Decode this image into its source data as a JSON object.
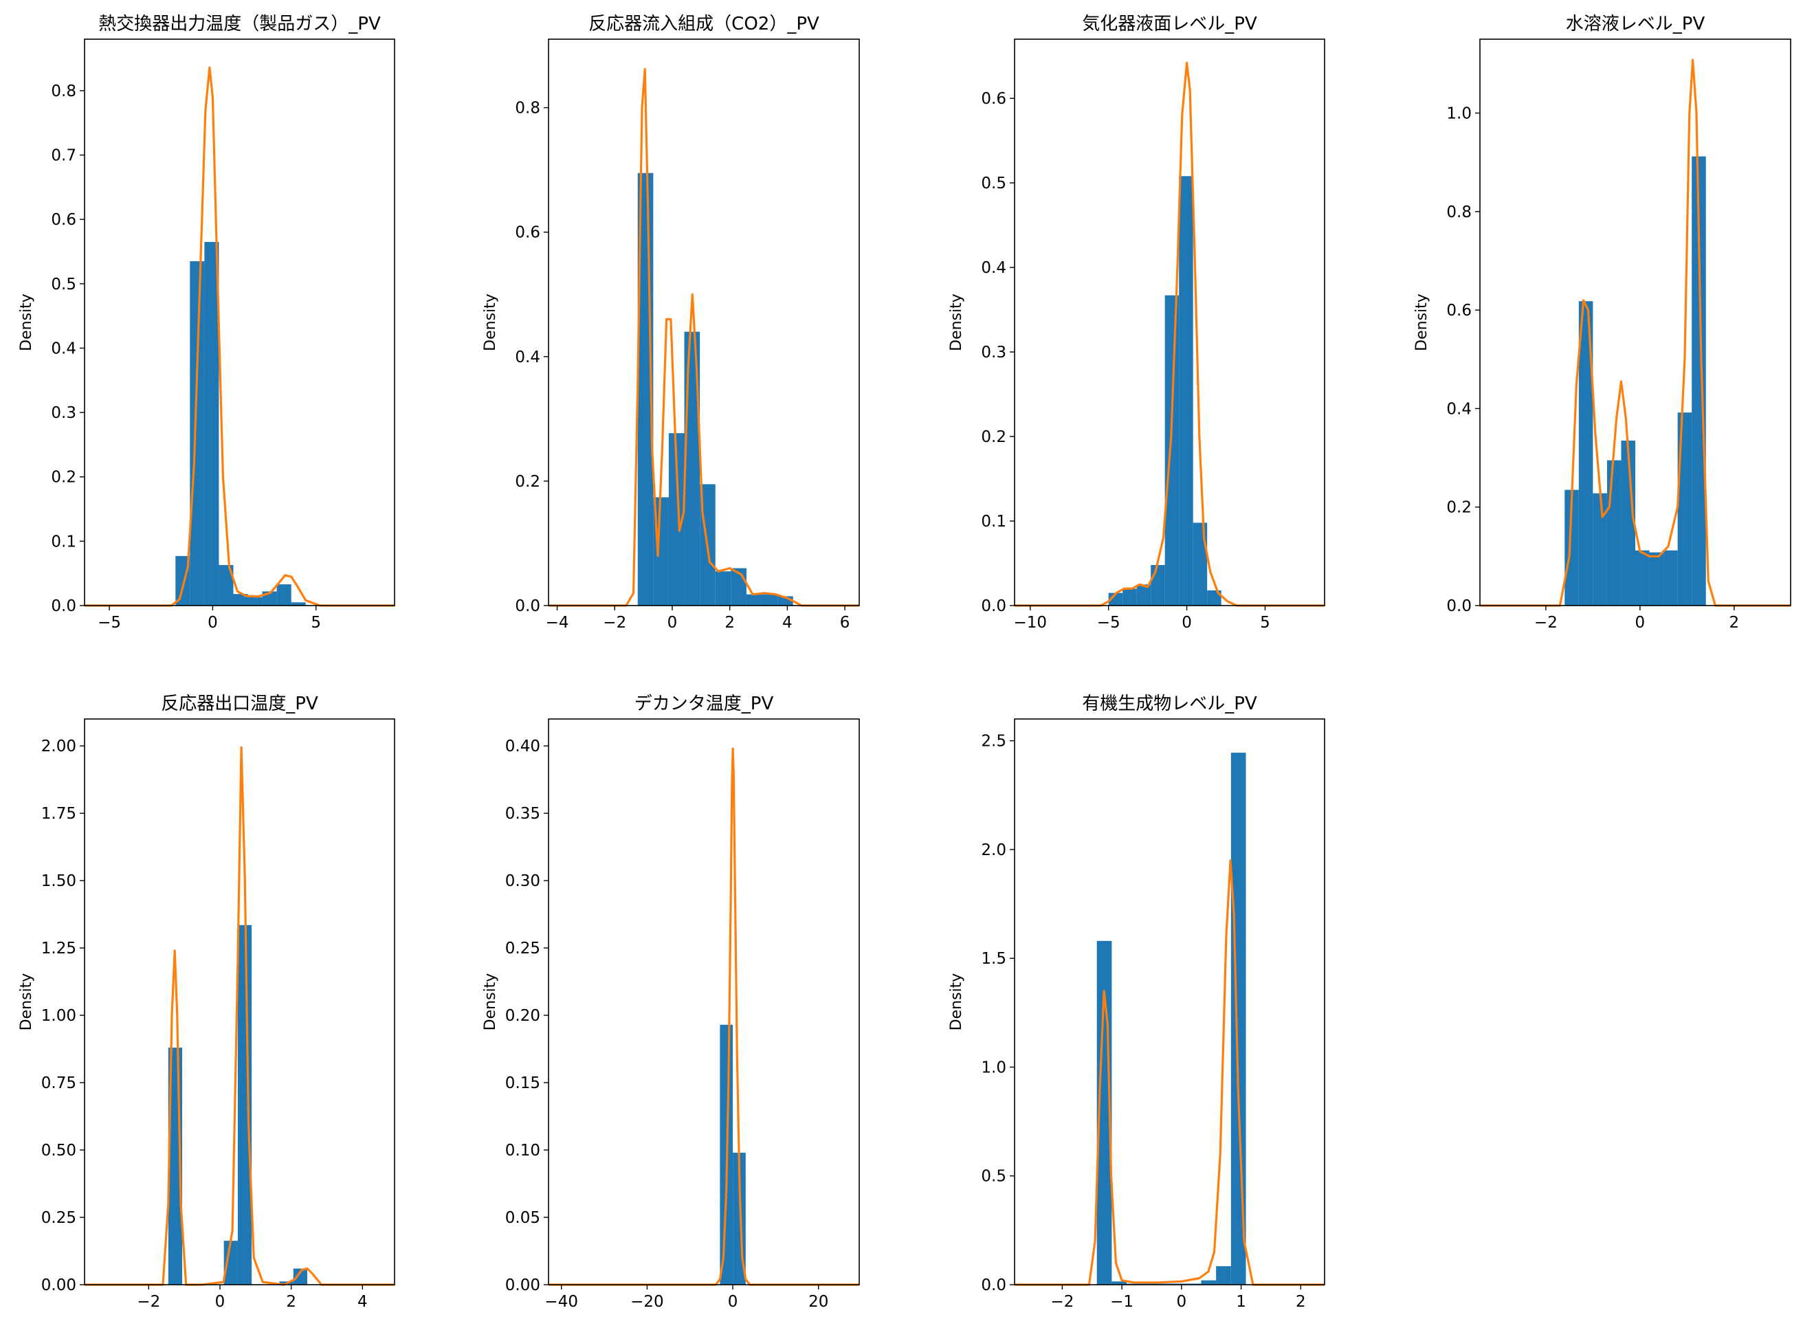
{
  "chart_data": [
    {
      "type": "histogram+kde",
      "title": "熱交換器出力温度（製品ガス）_PV",
      "ylabel": "Density",
      "xlim": [
        -6.2,
        8.8
      ],
      "ylim": [
        0,
        0.88
      ],
      "xticks": [
        -5,
        0,
        5
      ],
      "yticks": [
        0.0,
        0.1,
        0.2,
        0.3,
        0.4,
        0.5,
        0.6,
        0.7,
        0.8
      ],
      "ytick_decimals": 1,
      "histogram": {
        "bin_edges": [
          -1.8,
          -1.1,
          -0.4,
          0.3,
          1.0,
          1.7,
          2.4,
          3.1,
          3.8,
          4.5
        ],
        "density": [
          0.077,
          0.535,
          0.565,
          0.063,
          0.018,
          0.013,
          0.022,
          0.033,
          0.005
        ]
      },
      "kde": {
        "x": [
          -6.2,
          -2.0,
          -1.6,
          -1.2,
          -0.9,
          -0.6,
          -0.35,
          -0.15,
          0.0,
          0.2,
          0.5,
          0.8,
          1.2,
          1.6,
          2.2,
          2.8,
          3.2,
          3.5,
          3.8,
          4.1,
          4.5,
          5.2,
          8.8
        ],
        "y": [
          0,
          0,
          0.01,
          0.06,
          0.22,
          0.52,
          0.77,
          0.836,
          0.79,
          0.55,
          0.2,
          0.06,
          0.022,
          0.015,
          0.014,
          0.02,
          0.035,
          0.047,
          0.045,
          0.03,
          0.008,
          0,
          0
        ]
      }
    },
    {
      "type": "histogram+kde",
      "title": "反応器流入組成（CO2）_PV",
      "ylabel": "Density",
      "xlim": [
        -4.3,
        6.5
      ],
      "ylim": [
        0,
        0.91
      ],
      "xticks": [
        -4,
        -2,
        0,
        2,
        4,
        6
      ],
      "yticks": [
        0.0,
        0.2,
        0.4,
        0.6,
        0.8
      ],
      "ytick_decimals": 1,
      "histogram": {
        "bin_edges": [
          -1.2,
          -0.66,
          -0.12,
          0.42,
          0.96,
          1.5,
          2.04,
          2.58,
          3.12,
          3.66,
          4.2
        ],
        "density": [
          0.695,
          0.174,
          0.277,
          0.44,
          0.195,
          0.055,
          0.06,
          0.018,
          0.018,
          0.015
        ]
      },
      "kde": {
        "x": [
          -4.3,
          -1.6,
          -1.35,
          -1.2,
          -1.05,
          -0.95,
          -0.85,
          -0.7,
          -0.5,
          -0.35,
          -0.2,
          -0.05,
          0.1,
          0.25,
          0.4,
          0.55,
          0.7,
          0.85,
          1.05,
          1.3,
          1.6,
          2.0,
          2.4,
          2.8,
          3.2,
          3.6,
          4.0,
          4.5,
          6.5
        ],
        "y": [
          0,
          0,
          0.02,
          0.35,
          0.8,
          0.862,
          0.65,
          0.25,
          0.08,
          0.25,
          0.46,
          0.46,
          0.28,
          0.12,
          0.15,
          0.38,
          0.5,
          0.38,
          0.15,
          0.07,
          0.055,
          0.06,
          0.05,
          0.018,
          0.02,
          0.018,
          0.012,
          0,
          0
        ]
      }
    },
    {
      "type": "histogram+kde",
      "title": "気化器液面レベル_PV",
      "ylabel": "Density",
      "xlim": [
        -11,
        8.8
      ],
      "ylim": [
        0,
        0.67
      ],
      "xticks": [
        -10,
        -5,
        0,
        5
      ],
      "yticks": [
        0.0,
        0.1,
        0.2,
        0.3,
        0.4,
        0.5,
        0.6
      ],
      "ytick_decimals": 1,
      "histogram": {
        "bin_edges": [
          -5.0,
          -4.1,
          -3.2,
          -2.3,
          -1.4,
          -0.5,
          0.4,
          1.3,
          2.2,
          3.1
        ],
        "density": [
          0.015,
          0.02,
          0.025,
          0.048,
          0.367,
          0.508,
          0.098,
          0.018,
          0.0
        ]
      },
      "kde": {
        "x": [
          -11,
          -5.5,
          -5.0,
          -4.5,
          -4.0,
          -3.5,
          -3.0,
          -2.5,
          -2.0,
          -1.5,
          -1.0,
          -0.6,
          -0.3,
          0.0,
          0.2,
          0.5,
          0.8,
          1.1,
          1.5,
          2.0,
          2.6,
          3.2,
          8.8
        ],
        "y": [
          0,
          0,
          0.005,
          0.015,
          0.02,
          0.02,
          0.025,
          0.022,
          0.04,
          0.08,
          0.2,
          0.4,
          0.58,
          0.642,
          0.61,
          0.42,
          0.2,
          0.08,
          0.04,
          0.015,
          0.005,
          0,
          0
        ]
      }
    },
    {
      "type": "histogram+kde",
      "title": "水溶液レベル_PV",
      "ylabel": "Density",
      "xlim": [
        -3.4,
        3.2
      ],
      "ylim": [
        0,
        1.15
      ],
      "xticks": [
        -2,
        0,
        2
      ],
      "yticks": [
        0.0,
        0.2,
        0.4,
        0.6,
        0.8,
        1.0
      ],
      "ytick_decimals": 1,
      "histogram": {
        "bin_edges": [
          -1.6,
          -1.3,
          -1.0,
          -0.7,
          -0.4,
          -0.1,
          0.2,
          0.5,
          0.8,
          1.1,
          1.4
        ],
        "density": [
          0.235,
          0.618,
          0.228,
          0.295,
          0.335,
          0.112,
          0.108,
          0.112,
          0.392,
          0.912
        ]
      },
      "kde": {
        "x": [
          -3.4,
          -1.7,
          -1.5,
          -1.35,
          -1.2,
          -1.1,
          -0.95,
          -0.8,
          -0.65,
          -0.5,
          -0.4,
          -0.3,
          -0.15,
          0.0,
          0.2,
          0.4,
          0.6,
          0.8,
          0.95,
          1.05,
          1.12,
          1.2,
          1.3,
          1.45,
          1.6,
          3.2
        ],
        "y": [
          0,
          0,
          0.1,
          0.45,
          0.62,
          0.6,
          0.35,
          0.18,
          0.2,
          0.38,
          0.455,
          0.38,
          0.18,
          0.11,
          0.1,
          0.1,
          0.12,
          0.2,
          0.5,
          1.0,
          1.108,
          1.0,
          0.5,
          0.05,
          0,
          0
        ]
      }
    },
    {
      "type": "histogram+kde",
      "title": "反応器出口温度_PV",
      "ylabel": "Density",
      "xlim": [
        -3.8,
        4.9
      ],
      "ylim": [
        0,
        2.1
      ],
      "xticks": [
        -2,
        0,
        2,
        4
      ],
      "yticks": [
        0.0,
        0.25,
        0.5,
        0.75,
        1.0,
        1.25,
        1.5,
        1.75,
        2.0
      ],
      "ytick_decimals": 2,
      "histogram": {
        "bin_edges": [
          -1.45,
          -1.06,
          -0.67,
          -0.28,
          0.11,
          0.5,
          0.89,
          1.28,
          1.67,
          2.06,
          2.45,
          2.84
        ],
        "density": [
          0.88,
          0.0,
          0.0,
          0.0,
          0.163,
          1.335,
          0.0,
          0.0,
          0.012,
          0.06,
          0.0
        ]
      },
      "kde": {
        "x": [
          -3.8,
          -1.6,
          -1.45,
          -1.35,
          -1.27,
          -1.2,
          -1.1,
          -0.95,
          -0.5,
          0.1,
          0.35,
          0.5,
          0.6,
          0.7,
          0.8,
          0.95,
          1.2,
          1.8,
          2.1,
          2.3,
          2.45,
          2.6,
          2.85,
          4.9
        ],
        "y": [
          0,
          0,
          0.3,
          1.0,
          1.24,
          1.0,
          0.3,
          0,
          0,
          0.01,
          0.2,
          1.2,
          1.995,
          1.5,
          0.6,
          0.1,
          0.01,
          0,
          0.02,
          0.055,
          0.06,
          0.04,
          0,
          0
        ]
      }
    },
    {
      "type": "histogram+kde",
      "title": "デカンタ温度_PV",
      "ylabel": "Density",
      "xlim": [
        -43,
        29.5
      ],
      "ylim": [
        0,
        0.42
      ],
      "xticks": [
        -40,
        -20,
        0,
        20
      ],
      "yticks": [
        0.0,
        0.05,
        0.1,
        0.15,
        0.2,
        0.25,
        0.3,
        0.35,
        0.4
      ],
      "ytick_decimals": 2,
      "histogram": {
        "bin_edges": [
          -3.0,
          0.0,
          3.0
        ],
        "density": [
          0.193,
          0.098
        ]
      },
      "kde": {
        "x": [
          -43,
          -4.0,
          -3.0,
          -2.2,
          -1.5,
          -1.0,
          -0.5,
          -0.2,
          0.0,
          0.2,
          0.5,
          1.0,
          1.6,
          2.2,
          3.0,
          4.0,
          29.5
        ],
        "y": [
          0,
          0,
          0.004,
          0.02,
          0.07,
          0.15,
          0.28,
          0.37,
          0.398,
          0.38,
          0.3,
          0.17,
          0.07,
          0.02,
          0.004,
          0,
          0
        ]
      }
    },
    {
      "type": "histogram+kde",
      "title": "有機生成物レベル_PV",
      "ylabel": "Density",
      "xlim": [
        -2.8,
        2.4
      ],
      "ylim": [
        0,
        2.6
      ],
      "xticks": [
        -2,
        -1,
        0,
        1,
        2
      ],
      "yticks": [
        0.0,
        0.5,
        1.0,
        1.5,
        2.0,
        2.5
      ],
      "ytick_decimals": 1,
      "histogram": {
        "bin_edges": [
          -1.42,
          -1.17,
          -0.92,
          -0.67,
          -0.42,
          -0.17,
          0.08,
          0.33,
          0.58,
          0.83,
          1.08
        ],
        "density": [
          1.58,
          0.015,
          0.005,
          0.005,
          0.005,
          0.005,
          0.005,
          0.02,
          0.085,
          2.445
        ]
      },
      "kde": {
        "x": [
          -2.8,
          -1.55,
          -1.45,
          -1.37,
          -1.3,
          -1.24,
          -1.18,
          -1.1,
          -1.0,
          -0.8,
          -0.4,
          0.0,
          0.3,
          0.45,
          0.55,
          0.65,
          0.75,
          0.82,
          0.88,
          0.95,
          1.05,
          1.2,
          2.4
        ],
        "y": [
          0,
          0,
          0.2,
          0.9,
          1.35,
          1.2,
          0.5,
          0.1,
          0.02,
          0.01,
          0.01,
          0.015,
          0.03,
          0.06,
          0.15,
          0.6,
          1.6,
          1.95,
          1.7,
          0.9,
          0.2,
          0,
          0
        ]
      }
    }
  ]
}
